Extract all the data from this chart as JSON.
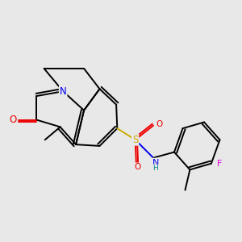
{
  "bg_color": "#e8e8e8",
  "atom_colors": {
    "C": "#000000",
    "N": "#0000ee",
    "O": "#ee0000",
    "S": "#ccaa00",
    "F": "#dd00dd",
    "NH_color": "#008888"
  },
  "bond_color": "#000000",
  "bond_width": 1.4,
  "dbo": 0.055
}
